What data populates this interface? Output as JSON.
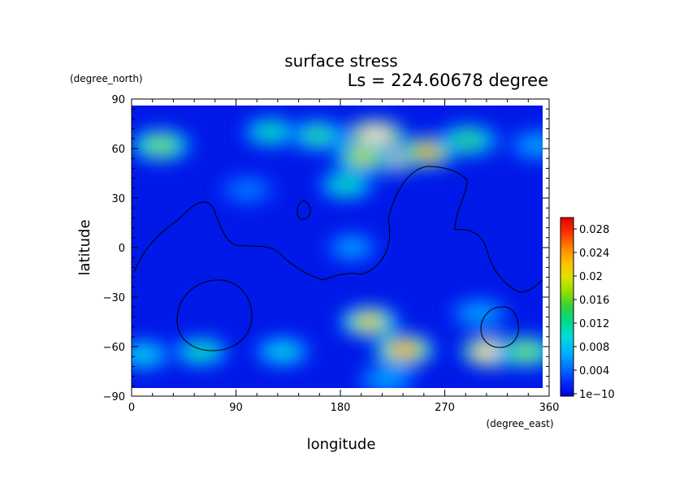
{
  "chart_data": {
    "type": "heatmap",
    "title": "surface stress",
    "subtitle": "Ls = 224.60678 degree",
    "xlabel": "longitude",
    "ylabel": "latitude",
    "x_unit": "(degree_east)",
    "y_unit": "(degree_north)",
    "xlim": [
      0,
      360
    ],
    "ylim": [
      -90,
      90
    ],
    "x_ticks": [
      "0",
      "90",
      "180",
      "270",
      "360"
    ],
    "y_ticks": [
      "90",
      "60",
      "30",
      "0",
      "−30",
      "−60",
      "−90"
    ],
    "colorbar": {
      "ticks": [
        "0.028",
        "0.024",
        "0.02",
        "0.016",
        "0.012",
        "0.008",
        "0.004",
        "1e−10"
      ],
      "range": [
        0,
        0.03
      ],
      "colors": [
        "#0000d8",
        "#0030ff",
        "#0078ff",
        "#00b4ff",
        "#00dcd8",
        "#00d890",
        "#30d040",
        "#90e000",
        "#e0e000",
        "#ffc000",
        "#ff8000",
        "#ff3000",
        "#e00000"
      ]
    },
    "hotspots": [
      {
        "lon": 210,
        "lat": 68,
        "value": 0.03
      },
      {
        "lon": 225,
        "lat": 55,
        "value": 0.032
      },
      {
        "lon": 255,
        "lat": 58,
        "value": 0.024
      },
      {
        "lon": 200,
        "lat": 55,
        "value": 0.02
      },
      {
        "lon": 160,
        "lat": 68,
        "value": 0.014
      },
      {
        "lon": 120,
        "lat": 70,
        "value": 0.012
      },
      {
        "lon": 290,
        "lat": 65,
        "value": 0.016
      },
      {
        "lon": 25,
        "lat": 62,
        "value": 0.018
      },
      {
        "lon": 185,
        "lat": 38,
        "value": 0.012
      },
      {
        "lon": 350,
        "lat": 62,
        "value": 0.008
      },
      {
        "lon": 205,
        "lat": -45,
        "value": 0.022
      },
      {
        "lon": 235,
        "lat": -62,
        "value": 0.026
      },
      {
        "lon": 310,
        "lat": -63,
        "value": 0.03
      },
      {
        "lon": 340,
        "lat": -63,
        "value": 0.018
      },
      {
        "lon": 60,
        "lat": -63,
        "value": 0.012
      },
      {
        "lon": 130,
        "lat": -63,
        "value": 0.01
      },
      {
        "lon": 10,
        "lat": -65,
        "value": 0.01
      },
      {
        "lon": 300,
        "lat": -40,
        "value": 0.008
      },
      {
        "lon": 190,
        "lat": 0,
        "value": 0.007
      },
      {
        "lon": 100,
        "lat": 35,
        "value": 0.006
      },
      {
        "lon": 220,
        "lat": -80,
        "value": 0.008
      }
    ]
  }
}
